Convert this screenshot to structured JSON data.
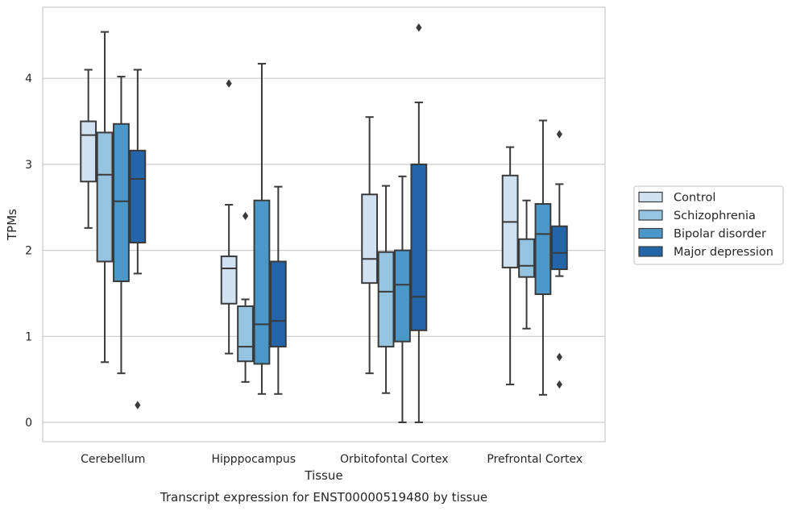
{
  "chart_data": {
    "type": "box",
    "caption": "Transcript expression for ENST00000519480 by tissue",
    "xlabel": "Tissue",
    "ylabel": "TPMs",
    "ylim": [
      -0.22,
      4.82
    ],
    "yticks": [
      "0",
      "1",
      "2",
      "3",
      "4"
    ],
    "grid": true,
    "legend_position": "right",
    "categories": [
      "Cerebellum",
      "Hipppocampus",
      "Orbitofontal Cortex",
      "Prefrontal Cortex"
    ],
    "series": [
      {
        "name": "Control",
        "color": "#d0e1f2",
        "boxes": [
          {
            "whislo": 2.26,
            "q1": 2.8,
            "med": 3.34,
            "q3": 3.5,
            "whishi": 4.1,
            "fliers": []
          },
          {
            "whislo": 0.8,
            "q1": 1.38,
            "med": 1.79,
            "q3": 1.93,
            "whishi": 2.53,
            "fliers": [
              3.94
            ]
          },
          {
            "whislo": 0.57,
            "q1": 1.62,
            "med": 1.9,
            "q3": 2.65,
            "whishi": 3.55,
            "fliers": []
          },
          {
            "whislo": 0.44,
            "q1": 1.8,
            "med": 2.33,
            "q3": 2.87,
            "whishi": 3.2,
            "fliers": []
          }
        ]
      },
      {
        "name": "Schizophrenia",
        "color": "#94c4df",
        "boxes": [
          {
            "whislo": 0.7,
            "q1": 1.87,
            "med": 2.88,
            "q3": 3.37,
            "whishi": 4.54,
            "fliers": []
          },
          {
            "whislo": 0.47,
            "q1": 0.71,
            "med": 0.88,
            "q3": 1.35,
            "whishi": 1.43,
            "fliers": [
              2.4
            ]
          },
          {
            "whislo": 0.34,
            "q1": 0.88,
            "med": 1.52,
            "q3": 1.98,
            "whishi": 2.75,
            "fliers": []
          },
          {
            "whislo": 1.09,
            "q1": 1.69,
            "med": 1.82,
            "q3": 2.13,
            "whishi": 2.58,
            "fliers": []
          }
        ]
      },
      {
        "name": "Bipolar disorder",
        "color": "#4a98c9",
        "boxes": [
          {
            "whislo": 0.57,
            "q1": 1.64,
            "med": 2.57,
            "q3": 3.47,
            "whishi": 4.02,
            "fliers": []
          },
          {
            "whislo": 0.33,
            "q1": 0.68,
            "med": 1.14,
            "q3": 2.58,
            "whishi": 4.17,
            "fliers": []
          },
          {
            "whislo": 0.0,
            "q1": 0.94,
            "med": 1.6,
            "q3": 2.0,
            "whishi": 2.86,
            "fliers": []
          },
          {
            "whislo": 0.32,
            "q1": 1.49,
            "med": 2.19,
            "q3": 2.54,
            "whishi": 3.51,
            "fliers": []
          }
        ]
      },
      {
        "name": "Major depression",
        "color": "#2464a8",
        "boxes": [
          {
            "whislo": 1.73,
            "q1": 2.09,
            "med": 2.83,
            "q3": 3.16,
            "whishi": 4.1,
            "fliers": [
              0.2
            ]
          },
          {
            "whislo": 0.33,
            "q1": 0.88,
            "med": 1.18,
            "q3": 1.87,
            "whishi": 2.74,
            "fliers": []
          },
          {
            "whislo": 0.0,
            "q1": 1.07,
            "med": 1.46,
            "q3": 3.0,
            "whishi": 3.72,
            "fliers": [
              4.59
            ]
          },
          {
            "whislo": 1.7,
            "q1": 1.78,
            "med": 1.97,
            "q3": 2.28,
            "whishi": 2.77,
            "fliers": [
              3.35,
              0.76,
              0.44
            ]
          }
        ]
      }
    ]
  },
  "colors": {
    "grid": "#cccccc",
    "spine": "#cccccc",
    "line": "#3a3a3a",
    "legend_border": "#cccccc"
  }
}
